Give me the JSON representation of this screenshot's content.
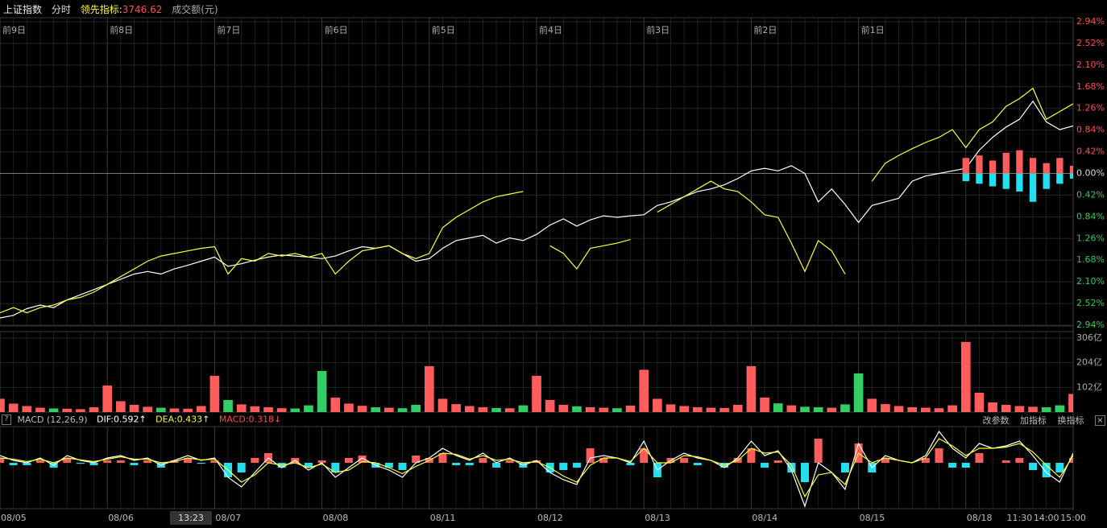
{
  "header": {
    "name": "上证指数",
    "mode": "分时",
    "lead_label": "领先指标:",
    "lead_value": 3746.62,
    "volume_label": "成交额(元)"
  },
  "cursor_time": "13:23",
  "buttons": [
    "改参数",
    "加指标",
    "换指标",
    "×"
  ],
  "help": "?",
  "chart_data": [
    {
      "type": "line",
      "day_labels": [
        "前9日",
        "前8日",
        "前7日",
        "前6日",
        "前5日",
        "前4日",
        "前3日",
        "前2日",
        "前1日"
      ],
      "ylim": [
        -2.94,
        2.94
      ],
      "yticks": [
        {
          "value": 2.94,
          "label": "2.94%"
        },
        {
          "value": 2.52,
          "label": "2.52%"
        },
        {
          "value": 2.1,
          "label": "2.10%"
        },
        {
          "value": 1.68,
          "label": "1.68%"
        },
        {
          "value": 1.26,
          "label": "1.26%"
        },
        {
          "value": 0.84,
          "label": "0.84%"
        },
        {
          "value": 0.42,
          "label": "0.42%"
        },
        {
          "value": 0,
          "label": "0.00%"
        },
        {
          "value": -0.42,
          "label": "0.42%"
        },
        {
          "value": -0.84,
          "label": "0.84%"
        },
        {
          "value": -1.26,
          "label": "1.26%"
        },
        {
          "value": -1.68,
          "label": "1.68%"
        },
        {
          "value": -2.1,
          "label": "2.10%"
        },
        {
          "value": -2.52,
          "label": "2.52%"
        },
        {
          "value": -2.94,
          "label": "2.94%"
        }
      ],
      "grid": true,
      "up_color": "#ff4d4d",
      "down_color": "#33cc55",
      "zero_color": "#dddddd",
      "series": [
        {
          "color": "#ffffff",
          "values": [
            -2.8,
            -2.75,
            -2.62,
            -2.55,
            -2.6,
            -2.45,
            -2.35,
            -2.25,
            -2.15,
            -2.05,
            -1.95,
            -1.9,
            -1.95,
            -1.85,
            -1.78,
            -1.7,
            -1.62,
            -1.8,
            -1.75,
            -1.68,
            -1.62,
            -1.58,
            -1.6,
            -1.62,
            -1.65,
            -1.6,
            -1.5,
            -1.42,
            -1.45,
            -1.4,
            -1.55,
            -1.7,
            -1.65,
            -1.45,
            -1.3,
            -1.25,
            -1.2,
            -1.35,
            -1.25,
            -1.3,
            -1.18,
            -1.0,
            -0.88,
            -1.02,
            -0.9,
            -0.82,
            -0.85,
            -0.82,
            -0.8,
            -0.62,
            -0.55,
            -0.45,
            -0.35,
            -0.3,
            -0.22,
            -0.1,
            0.05,
            0.1,
            0.05,
            0.15,
            0.0,
            -0.55,
            -0.3,
            -0.6,
            -0.95,
            -0.62,
            -0.55,
            -0.48,
            -0.15,
            -0.05,
            0.0,
            0.05,
            0.1,
            0.45,
            0.7,
            0.9,
            1.05,
            1.4,
            1.0,
            0.85,
            0.92
          ]
        },
        {
          "color": "#ffff33",
          "values": [
            -2.7,
            -2.6,
            -2.7,
            -2.6,
            -2.55,
            -2.45,
            -2.4,
            -2.3,
            -2.15,
            -2.0,
            -1.85,
            -1.7,
            -1.6,
            -1.55,
            -1.5,
            -1.45,
            -1.42,
            -1.95,
            -1.65,
            -1.7,
            -1.55,
            -1.6,
            -1.55,
            -1.62,
            -1.55,
            -1.95,
            -1.7,
            -1.5,
            -1.45,
            -1.4,
            -1.55,
            -1.65,
            -1.55,
            -1.05,
            -0.85,
            -0.7,
            -0.55,
            -0.45,
            -0.4,
            -0.35,
            null,
            -1.4,
            -1.55,
            -1.85,
            -1.45,
            -1.4,
            -1.35,
            -1.28,
            null,
            -0.75,
            -0.6,
            -0.45,
            -0.3,
            -0.15,
            -0.3,
            -0.35,
            -0.55,
            -0.8,
            -0.85,
            -1.35,
            -1.9,
            -1.3,
            -1.5,
            -1.95,
            null,
            -0.15,
            0.2,
            0.35,
            0.48,
            0.6,
            0.7,
            0.85,
            0.5,
            0.85,
            1.0,
            1.3,
            1.45,
            1.65,
            1.05,
            1.2,
            1.35
          ]
        },
        {
          "type": "bar",
          "color": "#ff5c5c",
          "values": [
            null,
            null,
            null,
            null,
            null,
            null,
            null,
            null,
            null,
            null,
            null,
            null,
            null,
            null,
            null,
            null,
            null,
            null,
            null,
            null,
            null,
            null,
            null,
            null,
            null,
            null,
            null,
            null,
            null,
            null,
            null,
            null,
            null,
            null,
            null,
            null,
            null,
            null,
            null,
            null,
            null,
            null,
            null,
            null,
            null,
            null,
            null,
            null,
            null,
            null,
            null,
            null,
            null,
            null,
            null,
            null,
            null,
            null,
            null,
            null,
            null,
            null,
            null,
            null,
            null,
            null,
            null,
            null,
            null,
            null,
            null,
            null,
            0.3,
            0.35,
            0.25,
            0.4,
            0.45,
            0.3,
            0.2,
            0.3,
            0.15
          ]
        },
        {
          "type": "bar",
          "color": "#22e0ee",
          "values": [
            null,
            null,
            null,
            null,
            null,
            null,
            null,
            null,
            null,
            null,
            null,
            null,
            null,
            null,
            null,
            null,
            null,
            null,
            null,
            null,
            null,
            null,
            null,
            null,
            null,
            null,
            null,
            null,
            null,
            null,
            null,
            null,
            null,
            null,
            null,
            null,
            null,
            null,
            null,
            null,
            null,
            null,
            null,
            null,
            null,
            null,
            null,
            null,
            null,
            null,
            null,
            null,
            null,
            null,
            null,
            null,
            null,
            null,
            null,
            null,
            null,
            null,
            null,
            null,
            null,
            null,
            null,
            null,
            null,
            null,
            null,
            null,
            -0.15,
            -0.2,
            -0.25,
            -0.3,
            -0.35,
            -0.55,
            -0.3,
            -0.2,
            -0.1
          ]
        }
      ]
    },
    {
      "type": "bar",
      "ylim": [
        0,
        306
      ],
      "yticks": [
        {
          "value": 306,
          "label": "306亿"
        },
        {
          "value": 204,
          "label": "204亿"
        },
        {
          "value": 102,
          "label": "102亿"
        }
      ],
      "up_color": "#ff5c5c",
      "down_color": "#33cc66",
      "values": [
        55,
        35,
        25,
        18,
        15,
        14,
        12,
        20,
        110,
        45,
        30,
        22,
        18,
        15,
        14,
        25,
        150,
        50,
        32,
        24,
        20,
        16,
        15,
        28,
        170,
        60,
        35,
        26,
        20,
        18,
        16,
        30,
        190,
        55,
        33,
        25,
        20,
        17,
        16,
        28,
        150,
        50,
        30,
        24,
        20,
        18,
        16,
        27,
        175,
        55,
        32,
        25,
        20,
        18,
        17,
        30,
        190,
        60,
        36,
        28,
        22,
        20,
        18,
        32,
        160,
        55,
        33,
        25,
        20,
        18,
        16,
        28,
        290,
        80,
        40,
        30,
        25,
        22,
        20,
        28,
        75
      ]
    },
    {
      "type": "macd",
      "title": "MACD (12,26,9)",
      "categories": [
        "08/05",
        null,
        null,
        null,
        null,
        null,
        null,
        null,
        "08/06",
        null,
        null,
        null,
        null,
        null,
        null,
        null,
        "08/07",
        null,
        null,
        null,
        null,
        null,
        null,
        null,
        "08/08",
        null,
        null,
        null,
        null,
        null,
        null,
        null,
        "08/11",
        null,
        null,
        null,
        null,
        null,
        null,
        null,
        "08/12",
        null,
        null,
        null,
        null,
        null,
        null,
        null,
        "08/13",
        null,
        null,
        null,
        null,
        null,
        null,
        null,
        "08/14",
        null,
        null,
        null,
        null,
        null,
        null,
        null,
        "08/15",
        null,
        null,
        null,
        null,
        null,
        null,
        null,
        "08/18",
        null,
        null,
        null,
        "11:30",
        null,
        "14:00",
        null,
        "15:00"
      ],
      "ylim": [
        -1.9,
        1.5
      ],
      "series": [
        {
          "label": "DIF:",
          "latest": 0.592,
          "arrow": "↑",
          "color": "#ffffff",
          "values": [
            0.3,
            0.1,
            0.0,
            0.2,
            -0.1,
            0.3,
            0.1,
            0.0,
            0.2,
            0.3,
            0.1,
            0.2,
            -0.1,
            0.1,
            0.3,
            0.1,
            0.2,
            -0.6,
            -1.0,
            -0.4,
            0.2,
            -0.2,
            0.1,
            -0.3,
            0.0,
            -0.6,
            -0.2,
            0.2,
            -0.1,
            -0.3,
            -0.6,
            0.0,
            0.2,
            0.6,
            0.3,
            0.1,
            0.4,
            0.0,
            0.2,
            -0.1,
            0.1,
            -0.4,
            -0.7,
            -0.9,
            0.2,
            0.3,
            0.2,
            0.0,
            0.9,
            -0.3,
            0.1,
            0.4,
            0.2,
            0.1,
            -0.2,
            0.2,
            0.9,
            0.3,
            0.5,
            -0.3,
            -1.8,
            0.0,
            -0.4,
            -1.1,
            0.8,
            -0.2,
            0.3,
            0.1,
            0.0,
            0.3,
            1.3,
            0.6,
            0.2,
            0.8,
            0.6,
            0.7,
            0.9,
            0.3,
            -0.4,
            -0.8,
            0.4
          ]
        },
        {
          "label": "DEA:",
          "latest": 0.433,
          "arrow": "↑",
          "color": "#ffff33",
          "values": [
            0.2,
            0.15,
            0.05,
            0.15,
            0.0,
            0.2,
            0.12,
            0.05,
            0.15,
            0.25,
            0.15,
            0.15,
            0.0,
            0.05,
            0.2,
            0.12,
            0.15,
            -0.3,
            -0.8,
            -0.5,
            0.0,
            -0.1,
            0.0,
            -0.2,
            -0.05,
            -0.4,
            -0.3,
            0.05,
            0.0,
            -0.2,
            -0.45,
            -0.15,
            0.1,
            0.4,
            0.35,
            0.15,
            0.3,
            0.1,
            0.15,
            0.0,
            0.05,
            -0.2,
            -0.55,
            -0.8,
            -0.1,
            0.2,
            0.2,
            0.05,
            0.6,
            0.0,
            0.0,
            0.3,
            0.25,
            0.1,
            -0.1,
            0.1,
            0.6,
            0.4,
            0.45,
            -0.1,
            -1.4,
            -0.5,
            -0.4,
            -0.9,
            0.4,
            0.0,
            0.2,
            0.1,
            0.0,
            0.2,
            1.0,
            0.7,
            0.3,
            0.6,
            0.6,
            0.65,
            0.8,
            0.45,
            -0.1,
            -0.6,
            0.3
          ]
        },
        {
          "label": "MACD:",
          "latest": 0.318,
          "arrow": "↓",
          "type": "bar",
          "color": "#ff5c5c",
          "down_color": "#22e0ee",
          "values": [
            0.2,
            -0.1,
            -0.1,
            0.1,
            -0.2,
            0.2,
            -0.04,
            -0.1,
            0.1,
            0.1,
            -0.1,
            0.1,
            -0.2,
            0.1,
            0.2,
            -0.04,
            0.1,
            -0.6,
            -0.4,
            0.2,
            0.4,
            -0.2,
            0.2,
            -0.2,
            0.1,
            -0.4,
            0.2,
            0.3,
            -0.2,
            -0.2,
            -0.3,
            0.3,
            0.2,
            0.4,
            -0.1,
            -0.1,
            0.2,
            -0.2,
            0.1,
            -0.2,
            0.1,
            -0.4,
            -0.3,
            -0.2,
            0.6,
            0.2,
            0.0,
            -0.1,
            0.6,
            -0.6,
            0.2,
            0.2,
            -0.1,
            0.0,
            -0.2,
            0.2,
            0.6,
            -0.2,
            0.1,
            -0.4,
            -0.8,
            1.0,
            0.0,
            -0.4,
            0.8,
            -0.4,
            0.2,
            0.0,
            0.0,
            0.2,
            0.6,
            -0.2,
            -0.2,
            0.4,
            0.0,
            0.1,
            0.2,
            -0.3,
            -0.6,
            -0.4,
            0.2
          ]
        }
      ]
    }
  ]
}
